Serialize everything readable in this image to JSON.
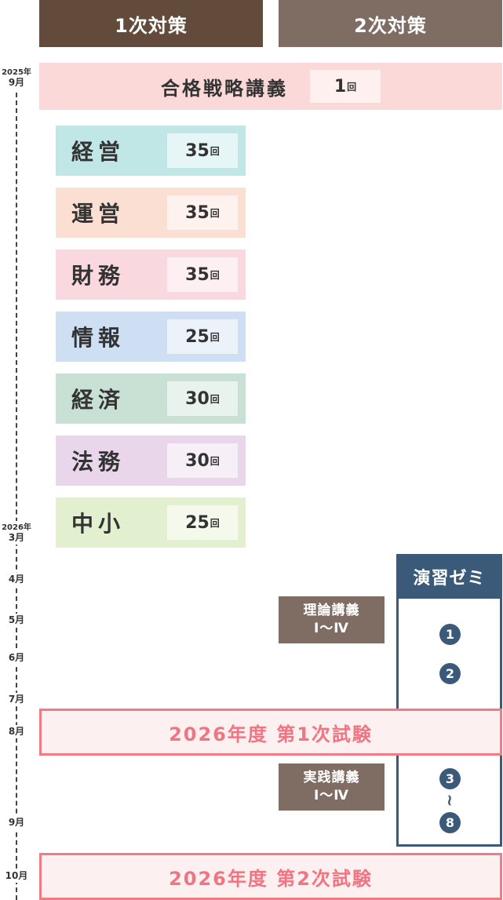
{
  "headers": {
    "first": "1次対策",
    "second": "2次対策"
  },
  "timeline": [
    {
      "year": "2025年",
      "month": "9月"
    },
    {
      "year": "2026年",
      "month": "3月"
    },
    {
      "month": "4月"
    },
    {
      "month": "5月"
    },
    {
      "month": "6月"
    },
    {
      "month": "7月"
    },
    {
      "month": "8月"
    },
    {
      "month": "9月"
    },
    {
      "month": "10月"
    }
  ],
  "strategy": {
    "title": "合格戦略講義",
    "count": "1",
    "unit": "回"
  },
  "subjects": [
    {
      "name": "経営",
      "count": "35",
      "unit": "回",
      "color": "#c1e6e6"
    },
    {
      "name": "運営",
      "count": "35",
      "unit": "回",
      "color": "#fbdfd3"
    },
    {
      "name": "財務",
      "count": "35",
      "unit": "回",
      "color": "#f9d8df"
    },
    {
      "name": "情報",
      "count": "25",
      "unit": "回",
      "color": "#cfdff3"
    },
    {
      "name": "経済",
      "count": "30",
      "unit": "回",
      "color": "#c9e1d5"
    },
    {
      "name": "法務",
      "count": "30",
      "unit": "回",
      "color": "#ead6ea"
    },
    {
      "name": "中小",
      "count": "25",
      "unit": "回",
      "color": "#e3f0cf"
    }
  ],
  "lectures": [
    {
      "line1": "理論講義",
      "line2": "Ⅰ～Ⅳ"
    },
    {
      "line1": "実践講義",
      "line2": "Ⅰ～Ⅳ"
    }
  ],
  "seminar": {
    "title": "演習ゼミ",
    "items": [
      "1",
      "2",
      "3",
      "8"
    ],
    "range_mark": "~"
  },
  "exams": [
    "2026年度 第1次試験",
    "2026年度 第2次試験"
  ],
  "colors": {
    "first_header": "#634b3b",
    "second_header": "#7f6d64",
    "seminar": "#3b5a7a",
    "exam": "#f27a85"
  }
}
